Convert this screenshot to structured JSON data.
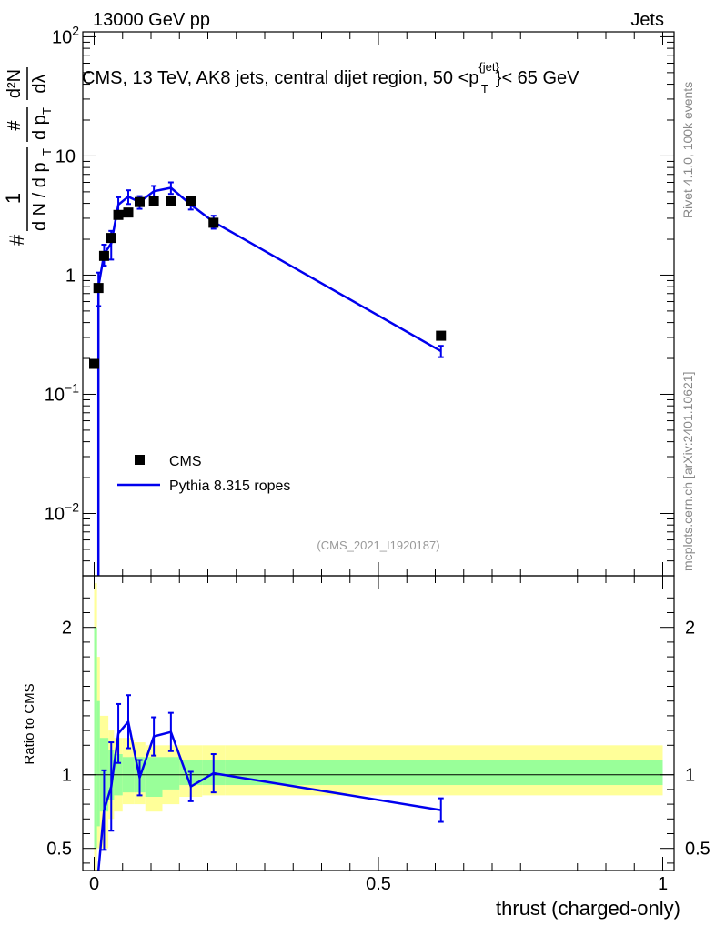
{
  "header": {
    "left": "13000 GeV pp",
    "right": "Jets"
  },
  "side": {
    "rivet": "Rivet 4.1.0,  100k events",
    "mcplots": "mcplots.cern.ch [arXiv:2401.10621]"
  },
  "colors": {
    "mc": "#0000ee",
    "data": "#000000",
    "band_outer": "#ffff99",
    "band_inner": "#99ff99"
  },
  "chart_data": [
    {
      "type": "scatter",
      "panel": "main",
      "title_parts": {
        "before": "CMS, 13 TeV, AK8 jets, central dijet region, 50 <p",
        "sup": "{jet}",
        "sub": "T",
        "after": "}< 65 GeV"
      },
      "ylabel_parts": {
        "hash": "#",
        "num": "1",
        "den": "d N / d p",
        "den_sub": "T",
        "num2": "#",
        "den2": "d p",
        "den2_sub": "T",
        "num3": "d²N",
        "den3": "dλ"
      },
      "yscale": "log",
      "xlim": [
        -0.02,
        1.02
      ],
      "ylim": [
        0.003,
        110
      ],
      "yticks": [
        {
          "value": 100,
          "base": "10",
          "exp": "2"
        },
        {
          "value": 10,
          "base": "10",
          "exp": ""
        },
        {
          "value": 1,
          "base": "1",
          "exp": ""
        },
        {
          "value": 0.1,
          "base": "10",
          "exp": "−1"
        },
        {
          "value": 0.01,
          "base": "10",
          "exp": "−2"
        }
      ],
      "legend": [
        {
          "label": "CMS",
          "marker": "square"
        },
        {
          "label": "Pythia 8.315 ropes",
          "marker": "line"
        }
      ],
      "watermark": "(CMS_2021_I1920187)",
      "series": [
        {
          "name": "CMS",
          "x": [
            0.0,
            0.0075,
            0.0175,
            0.03,
            0.0425,
            0.06,
            0.08,
            0.105,
            0.135,
            0.17,
            0.21,
            0.61
          ],
          "values": [
            0.18,
            0.78,
            1.45,
            2.05,
            3.2,
            3.35,
            4.1,
            4.15,
            4.15,
            4.2,
            2.75,
            0.31
          ]
        },
        {
          "name": "Pythia 8.315 ropes",
          "x": [
            0.0075,
            0.0075,
            0.0175,
            0.03,
            0.0425,
            0.06,
            0.08,
            0.105,
            0.135,
            0.17,
            0.21,
            0.61
          ],
          "values": [
            0.002,
            0.8,
            1.5,
            1.85,
            3.9,
            4.55,
            4.1,
            5.05,
            5.4,
            3.9,
            2.8,
            0.23
          ],
          "err": [
            0,
            0.25,
            0.3,
            0.5,
            0.6,
            0.6,
            0.5,
            0.55,
            0.6,
            0.35,
            0.35,
            0.025
          ]
        }
      ]
    },
    {
      "type": "line",
      "panel": "ratio",
      "ylabel": "Ratio to CMS",
      "xlabel": "thrust (charged-only)",
      "xlim": [
        -0.02,
        1.02
      ],
      "ylim": [
        0.35,
        2.35
      ],
      "yticks": [
        {
          "value": 2,
          "label": "2"
        },
        {
          "value": 1,
          "label": "1"
        },
        {
          "value": 0.5,
          "label": "0.5"
        }
      ],
      "xticks": [
        {
          "value": 0,
          "label": "0"
        },
        {
          "value": 0.5,
          "label": "0.5"
        },
        {
          "value": 1,
          "label": "1"
        }
      ],
      "band_edges": [
        0.0,
        0.005,
        0.01,
        0.025,
        0.035,
        0.05,
        0.07,
        0.09,
        0.12,
        0.15,
        0.19,
        0.23,
        1.0
      ],
      "band_outer_lo": [
        0.3,
        0.5,
        0.5,
        0.7,
        0.75,
        0.8,
        0.8,
        0.75,
        0.8,
        0.85,
        0.86,
        0.86
      ],
      "band_outer_hi": [
        2.3,
        1.8,
        1.4,
        1.3,
        1.25,
        1.25,
        1.22,
        1.2,
        1.2,
        1.2,
        1.2,
        1.2
      ],
      "band_inner_lo": [
        0.5,
        0.65,
        0.75,
        0.83,
        0.86,
        0.88,
        0.88,
        0.85,
        0.9,
        0.93,
        0.93,
        0.93
      ],
      "band_inner_hi": [
        2.0,
        1.5,
        1.25,
        1.17,
        1.14,
        1.12,
        1.12,
        1.12,
        1.12,
        1.1,
        1.1,
        1.1
      ],
      "series": [
        {
          "name": "Pythia 8.315 ropes / CMS",
          "x": [
            0.0075,
            0.0075,
            0.0175,
            0.03,
            0.0425,
            0.06,
            0.08,
            0.105,
            0.135,
            0.17,
            0.21,
            0.61
          ],
          "values": [
            0.3,
            0.3,
            0.76,
            0.92,
            1.28,
            1.36,
            0.98,
            1.26,
            1.29,
            0.92,
            1.01,
            0.76
          ],
          "err": [
            0,
            0,
            0.27,
            0.3,
            0.2,
            0.18,
            0.12,
            0.13,
            0.13,
            0.1,
            0.13,
            0.08
          ]
        }
      ]
    }
  ]
}
